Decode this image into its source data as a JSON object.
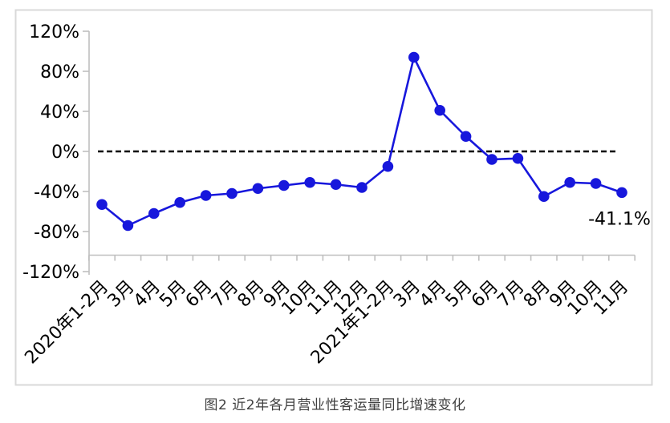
{
  "figure": {
    "caption": "图2 近2年各月营业性客运量同比增速变化"
  },
  "chart_data": {
    "type": "line",
    "title": "图2 近2年各月营业性客运量同比增速变化",
    "categories": [
      "2020年1-2月",
      "3月",
      "4月",
      "5月",
      "6月",
      "7月",
      "8月",
      "9月",
      "10月",
      "11月",
      "12月",
      "2021年1-2月",
      "3月",
      "4月",
      "5月",
      "6月",
      "7月",
      "8月",
      "9月",
      "10月",
      "11月"
    ],
    "series": [
      {
        "name": "营业性客运量同比增速",
        "values": [
          -53,
          -74,
          -62,
          -51,
          -44,
          -42,
          -37,
          -34,
          -31,
          -33,
          -36,
          -15,
          94,
          41,
          15,
          -8,
          -7,
          -45,
          -31,
          -32,
          -41.1
        ]
      }
    ],
    "xlabel": "",
    "ylabel": "",
    "ylim": [
      -120,
      120
    ],
    "ytick_step": 40,
    "ytick_labels": [
      "120%",
      "80%",
      "40%",
      "0%",
      "-40%",
      "-80%",
      "-120%"
    ],
    "grid": false,
    "legend": false,
    "zero_line_style": "dashed",
    "annotation": {
      "text": "-41.1%",
      "point_index": 20
    },
    "colors": {
      "series": "#1717DC",
      "axis": "#BFBFBF",
      "frame": "#D9D9D9",
      "zero_line": "#000000",
      "tick_label": "#000000",
      "annotation": "#000000"
    }
  }
}
